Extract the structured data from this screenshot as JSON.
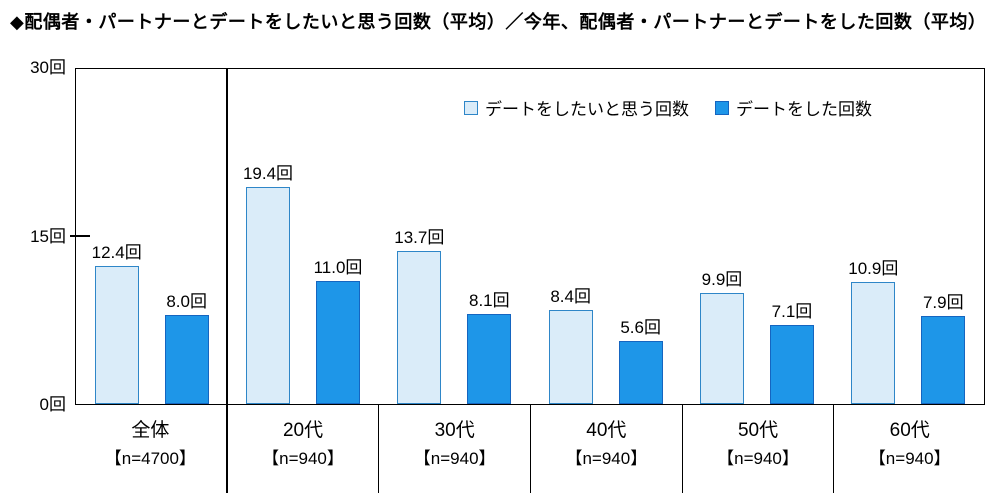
{
  "title": "◆配偶者・パートナーとデートをしたいと思う回数（平均）／今年、配偶者・パートナーとデートをした回数（平均）",
  "colors": {
    "want_fill": "#daecf9",
    "want_border": "#2e86c8",
    "did_fill": "#1e96e8",
    "did_border": "#1565c0"
  },
  "y_axis": {
    "ticks": [
      "30回",
      "15回",
      "0回"
    ]
  },
  "chart_data": {
    "type": "bar",
    "categories": [
      "全体",
      "20代",
      "30代",
      "40代",
      "50代",
      "60代"
    ],
    "category_sublabels": [
      "【n=4700】",
      "【n=940】",
      "【n=940】",
      "【n=940】",
      "【n=940】",
      "【n=940】"
    ],
    "series": [
      {
        "name": "デートをしたいと思う回数",
        "values": [
          12.4,
          19.4,
          13.7,
          8.4,
          9.9,
          10.9
        ]
      },
      {
        "name": "デートをした回数",
        "values": [
          8.0,
          11.0,
          8.1,
          5.6,
          7.1,
          7.9
        ]
      }
    ],
    "value_suffix": "回",
    "ylim": [
      0,
      30
    ],
    "y_tick_values": [
      0,
      15,
      30
    ],
    "xlabel": "",
    "ylabel": "",
    "grid": false,
    "legend_position": "top-right-inside",
    "title": "◆配偶者・パートナーとデートをしたいと思う回数（平均）／今年、配偶者・パートナーとデートをした回数（平均）"
  }
}
